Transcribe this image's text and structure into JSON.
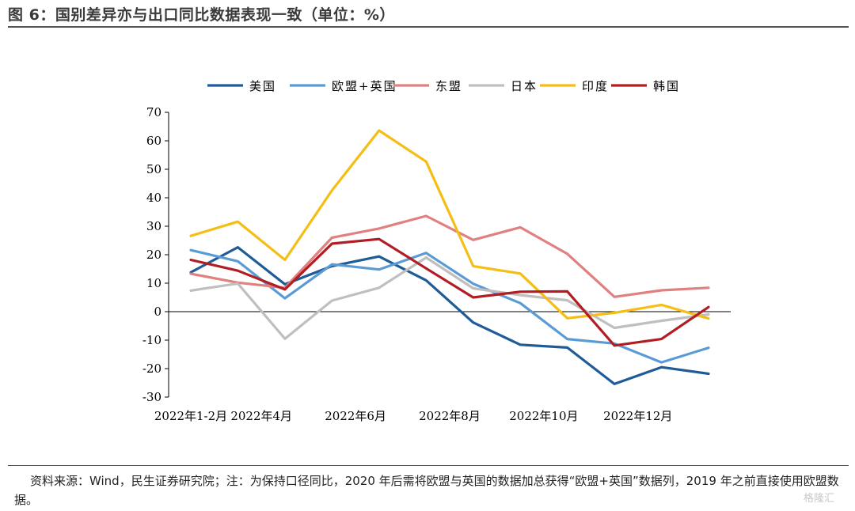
{
  "figure": {
    "title": "图 6：国别差异亦与出口同比数据表现一致（单位：%）",
    "source_note": "资料来源：Wind，民生证券研究院；注：为保持口径同比，2020 年后需将欧盟与英国的数据加总获得“欧盟+英国”数据列，2019 年之前直接使用欧盟数据。",
    "watermark": "格隆汇"
  },
  "chart_data": {
    "type": "line",
    "x": [
      "2022-01/02",
      "2022-03",
      "2022-04",
      "2022-05",
      "2022-06",
      "2022-07",
      "2022-08",
      "2022-09",
      "2022-10",
      "2022-11",
      "2022-12",
      "2023-01/02"
    ],
    "x_tick_labels": [
      "2022年1-2月",
      "2022年4月",
      "2022年6月",
      "2022年8月",
      "2022年10月",
      "2022年12月"
    ],
    "x_tick_index": [
      0,
      1.5,
      3.5,
      5.5,
      7.5,
      9.5
    ],
    "ylim": [
      -30,
      70
    ],
    "y_ticks": [
      70,
      60,
      50,
      40,
      30,
      20,
      10,
      0,
      -10,
      -20,
      -30
    ],
    "legend_position": "top",
    "series": [
      {
        "name": "美国",
        "color": "#1f5b96",
        "values": [
          13.8,
          22.6,
          9.6,
          16.0,
          19.4,
          11.0,
          -3.8,
          -11.6,
          -12.6,
          -25.4,
          -19.5,
          -21.8
        ]
      },
      {
        "name": "欧盟+英国",
        "color": "#5b9bd5",
        "values": [
          21.6,
          17.7,
          4.7,
          16.6,
          14.8,
          20.6,
          9.8,
          3.0,
          -9.6,
          -11.2,
          -17.8,
          -12.7
        ]
      },
      {
        "name": "东盟",
        "color": "#e08080",
        "values": [
          13.3,
          10.2,
          8.4,
          26.0,
          29.2,
          33.6,
          25.2,
          29.6,
          20.3,
          5.2,
          7.5,
          8.4
        ]
      },
      {
        "name": "日本",
        "color": "#bfbfbf",
        "values": [
          7.4,
          9.9,
          -9.5,
          3.9,
          8.4,
          19.0,
          8.2,
          5.8,
          4.0,
          -5.7,
          -3.2,
          -1.0
        ]
      },
      {
        "name": "印度",
        "color": "#f5be14",
        "values": [
          26.6,
          31.6,
          18.2,
          42.6,
          63.6,
          52.7,
          16.0,
          13.4,
          -2.3,
          -0.4,
          2.4,
          -2.4
        ]
      },
      {
        "name": "韩国",
        "color": "#b01e23",
        "values": [
          18.2,
          14.4,
          7.8,
          23.9,
          25.5,
          15.2,
          5.0,
          7.0,
          7.1,
          -11.9,
          -9.6,
          1.6
        ]
      }
    ]
  }
}
